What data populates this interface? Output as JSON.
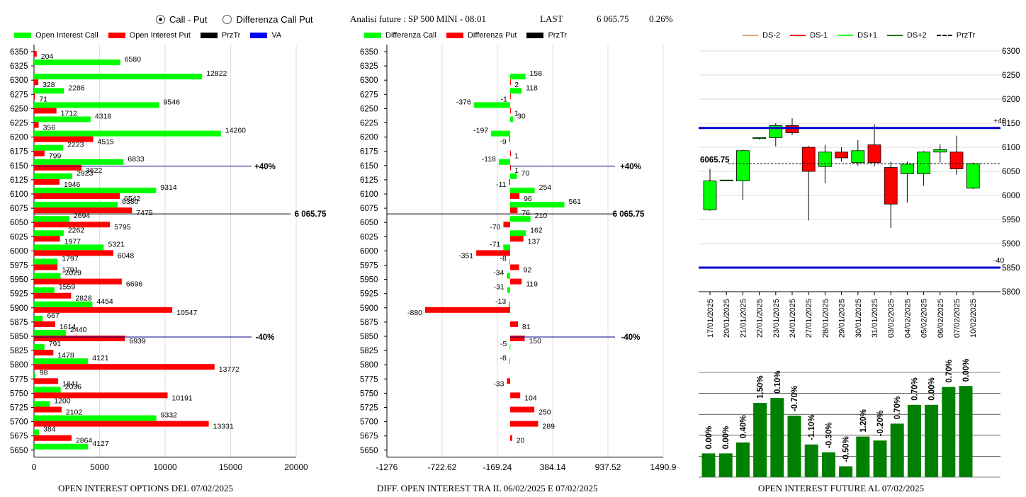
{
  "header": {
    "radio_call_put": "Call - Put",
    "radio_diff": "Differenza Call Put",
    "title": "Analisi future : SP 500 MINI - 08:01",
    "last_label": "LAST",
    "last_value": "6 065.75",
    "change": "0.26%"
  },
  "colors": {
    "call": "#00ff00",
    "put": "#ff0000",
    "prztr": "#000000",
    "va": "#0000ff",
    "bar": "#008000"
  },
  "legend_oi": [
    {
      "label": "Open Interest Call",
      "color": "#00ff00"
    },
    {
      "label": "Open Interest Put",
      "color": "#ff0000"
    },
    {
      "label": "PrzTr",
      "color": "#000000"
    },
    {
      "label": "VA",
      "color": "#0000ff"
    }
  ],
  "legend_diff": [
    {
      "label": "Differenza Call",
      "color": "#00ff00"
    },
    {
      "label": "Differenza Put",
      "color": "#ff0000"
    },
    {
      "label": "PrzTr",
      "color": "#000000"
    }
  ],
  "legend_candle": [
    {
      "label": "DS-2",
      "color": "#e8a070",
      "style": "solid"
    },
    {
      "label": "DS-1",
      "color": "#ff0000",
      "style": "solid"
    },
    {
      "label": "DS+1",
      "color": "#00ff00",
      "style": "solid"
    },
    {
      "label": "DS+2",
      "color": "#008000",
      "style": "solid"
    },
    {
      "label": "PrzTr",
      "color": "#000000",
      "style": "dashed"
    }
  ],
  "captions": {
    "oi": "OPEN INTEREST OPTIONS DEL 07/02/2025",
    "diff": "DIFF. OPEN INTEREST TRA IL 06/02/2025 E 07/02/2025",
    "future": "OPEN INTEREST FUTURE AL 07/02/2025"
  },
  "chart_data": [
    {
      "type": "bar",
      "orientation": "horizontal",
      "strikes": [
        "6350",
        "6325",
        "6300",
        "6275",
        "6250",
        "6225",
        "6200",
        "6175",
        "6150",
        "6125",
        "6100",
        "6075",
        "6050",
        "6025",
        "6000",
        "5975",
        "5950",
        "5925",
        "5900",
        "5875",
        "5850",
        "5825",
        "5800",
        "5775",
        "5750",
        "5725",
        "5700",
        "5675",
        "5650"
      ],
      "series": [
        {
          "name": "Open Interest Call",
          "values": [
            null,
            6580,
            12822,
            2286,
            9546,
            4318,
            14260,
            2223,
            6833,
            2923,
            9314,
            6380,
            2694,
            2262,
            5321,
            1797,
            2029,
            1559,
            4454,
            667,
            2440,
            791,
            4121,
            98,
            2036,
            1200,
            9332,
            384,
            4127
          ]
        },
        {
          "name": "Open Interest Put",
          "values": [
            204,
            null,
            328,
            71,
            1712,
            356,
            4515,
            799,
            3622,
            1946,
            6542,
            7475,
            5795,
            1977,
            6048,
            1791,
            6696,
            2828,
            10547,
            1614,
            6939,
            1478,
            13772,
            1841,
            10191,
            2102,
            13331,
            2864,
            null
          ]
        }
      ],
      "xlim": [
        0,
        20000
      ],
      "xticks": [
        "0",
        "5000",
        "10000",
        "15000",
        "20000"
      ],
      "ref_lines": [
        {
          "strike": "6150",
          "label": "+40%"
        },
        {
          "strike": "6075",
          "label": "6 065.75"
        },
        {
          "strike": "5850",
          "label": "-40%"
        }
      ]
    },
    {
      "type": "bar",
      "orientation": "horizontal",
      "strikes": [
        "6350",
        "6325",
        "6300",
        "6275",
        "6250",
        "6225",
        "6200",
        "6175",
        "6150",
        "6125",
        "6100",
        "6075",
        "6050",
        "6025",
        "6000",
        "5975",
        "5950",
        "5925",
        "5900",
        "5875",
        "5850",
        "5825",
        "5800",
        "5775",
        "5750",
        "5725",
        "5700",
        "5675",
        "5650"
      ],
      "series": [
        {
          "name": "Differenza Call",
          "values": [
            null,
            null,
            158,
            118,
            -376,
            30,
            -197,
            null,
            -118,
            70,
            254,
            561,
            210,
            162,
            -71,
            -8,
            -34,
            -31,
            -13,
            null,
            null,
            -5,
            -8,
            null,
            null,
            null,
            null,
            null,
            null
          ]
        },
        {
          "name": "Differenza Put",
          "values": [
            null,
            null,
            2,
            -1,
            1,
            null,
            -9,
            1,
            1,
            -11,
            96,
            76,
            -70,
            137,
            -351,
            92,
            119,
            null,
            -880,
            81,
            150,
            null,
            null,
            -33,
            104,
            250,
            289,
            20,
            null
          ]
        }
      ],
      "xlim": [
        -1276,
        1490.9
      ],
      "xticks": [
        "-1276",
        "-722.62",
        "-169.24",
        "384.14",
        "937.52",
        "1490.9"
      ],
      "ref_lines": [
        {
          "strike": "6150",
          "label": "+40%"
        },
        {
          "strike": "6075",
          "label": "6 065.75"
        },
        {
          "strike": "5850",
          "label": "-40%"
        }
      ]
    },
    {
      "type": "candlestick",
      "dates": [
        "17/01/2025",
        "20/01/2025",
        "21/01/2025",
        "22/01/2025",
        "23/01/2025",
        "24/01/2025",
        "27/01/2025",
        "28/01/2025",
        "29/01/2025",
        "30/01/2025",
        "31/01/2025",
        "03/02/2025",
        "04/02/2025",
        "05/02/2025",
        "06/02/2025",
        "07/02/2025",
        "10/02/2025"
      ],
      "ohlc": [
        [
          5970,
          6055,
          5968,
          6030
        ],
        [
          6030,
          6032,
          6030,
          6032
        ],
        [
          6030,
          6095,
          5990,
          6093
        ],
        [
          6118,
          6120,
          6116,
          6120
        ],
        [
          6120,
          6150,
          6102,
          6145
        ],
        [
          6145,
          6160,
          6125,
          6130
        ],
        [
          6100,
          6103,
          5948,
          6050
        ],
        [
          6060,
          6105,
          6025,
          6090
        ],
        [
          6090,
          6100,
          6070,
          6078
        ],
        [
          6068,
          6115,
          6062,
          6093
        ],
        [
          6105,
          6148,
          6060,
          6068
        ],
        [
          6058,
          6070,
          5932,
          5982
        ],
        [
          6045,
          6070,
          5985,
          6065
        ],
        [
          6045,
          6092,
          6020,
          6090
        ],
        [
          6090,
          6106,
          6068,
          6095
        ],
        [
          6090,
          6124,
          6043,
          6055
        ],
        [
          6015,
          6068,
          6013,
          6066
        ]
      ],
      "yticks": [
        "5800",
        "5850",
        "5900",
        "5950",
        "6000",
        "6050",
        "6100",
        "6150",
        "6200",
        "6250",
        "6300"
      ],
      "ylim": [
        5800,
        6300
      ],
      "prztr": 6065.75,
      "prztr_label": "6065.75",
      "bands": [
        {
          "value": 6140,
          "label": "+40"
        },
        {
          "value": 5850,
          "label": "-40"
        }
      ]
    },
    {
      "type": "bar",
      "values": [
        0,
        0,
        0.4,
        1.5,
        0.1,
        -0.7,
        -1.1,
        -0.3,
        -0.5,
        1.2,
        -0.2,
        0.7,
        0.7,
        0.0,
        0.7,
        0.0
      ],
      "labels": [
        "0.00%",
        "0.00%",
        "0.40%",
        "1.50%",
        "0.10%",
        "-0.70%",
        "-1.10%",
        "-0.30%",
        "-0.50%",
        "1.20%",
        "-0.20%",
        "0.70%",
        "0.70%",
        "0.00%",
        "0.70%",
        "0.00%"
      ],
      "levels": [
        0.24,
        0.24,
        0.35,
        0.75,
        0.8,
        0.62,
        0.33,
        0.25,
        0.11,
        0.41,
        0.37,
        0.54,
        0.73,
        0.73,
        0.91,
        0.92
      ]
    }
  ]
}
